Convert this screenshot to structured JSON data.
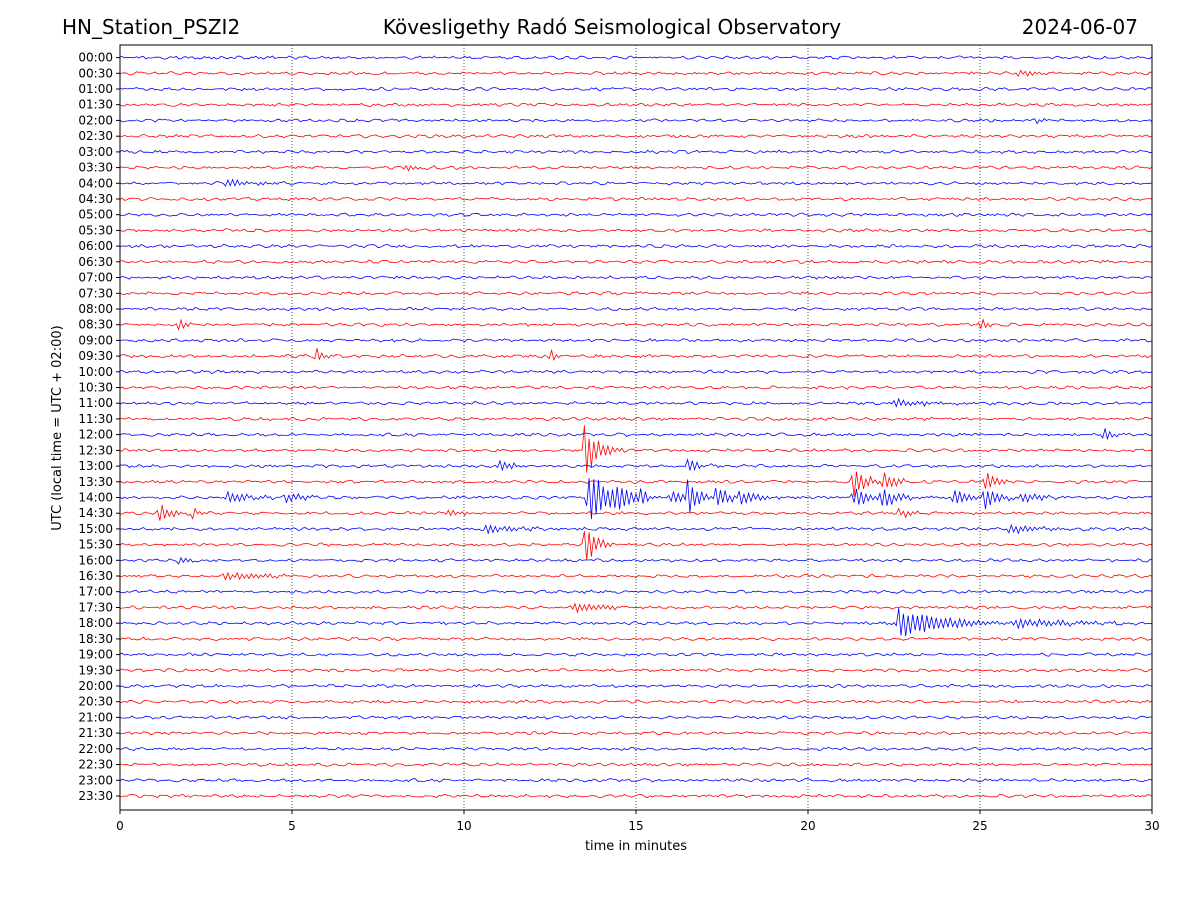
{
  "header": {
    "station": "HN_Station_PSZI2",
    "title": "Kövesligethy Radó Seismological Observatory",
    "date": "2024-06-07"
  },
  "chart_data": {
    "type": "line",
    "title": "Kövesligethy Radó Seismological Observatory",
    "xlabel": "time in minutes",
    "ylabel": "UTC (local time = UTC + 02:00)",
    "xlim": [
      0,
      30
    ],
    "x_ticks": [
      0,
      5,
      10,
      15,
      20,
      25,
      30
    ],
    "x_tick_labels": [
      "0",
      "5",
      "10",
      "15",
      "20",
      "25",
      "30"
    ],
    "grid": "vertical dotted lines at 5, 10, 15, 20, 25 minutes",
    "trace_colors": [
      "#0000ff",
      "#ff0000"
    ],
    "rows": [
      "00:00",
      "00:30",
      "01:00",
      "01:30",
      "02:00",
      "02:30",
      "03:00",
      "03:30",
      "04:00",
      "04:30",
      "05:00",
      "05:30",
      "06:00",
      "06:30",
      "07:00",
      "07:30",
      "08:00",
      "08:30",
      "09:00",
      "09:30",
      "10:00",
      "10:30",
      "11:00",
      "11:30",
      "12:00",
      "12:30",
      "13:00",
      "13:30",
      "14:00",
      "14:30",
      "15:00",
      "15:30",
      "16:00",
      "16:30",
      "17:00",
      "17:30",
      "18:00",
      "18:30",
      "19:00",
      "19:30",
      "20:00",
      "20:30",
      "21:00",
      "21:30",
      "22:00",
      "22:30",
      "23:00",
      "23:30"
    ],
    "events": [
      {
        "row": "00:30",
        "t": 26.1,
        "amp": 0.3,
        "dur": 0.3
      },
      {
        "row": "02:00",
        "t": 26.6,
        "amp": 0.2,
        "dur": 0.2
      },
      {
        "row": "03:30",
        "t": 8.2,
        "amp": 0.2,
        "dur": 0.5
      },
      {
        "row": "04:00",
        "t": 3.1,
        "amp": 0.3,
        "dur": 0.8
      },
      {
        "row": "08:30",
        "t": 1.7,
        "amp": 0.5,
        "dur": 0.2
      },
      {
        "row": "08:30",
        "t": 25.0,
        "amp": 0.5,
        "dur": 0.2
      },
      {
        "row": "09:30",
        "t": 5.7,
        "amp": 0.5,
        "dur": 0.2
      },
      {
        "row": "09:30",
        "t": 12.5,
        "amp": 0.5,
        "dur": 0.2
      },
      {
        "row": "11:00",
        "t": 22.5,
        "amp": 0.25,
        "dur": 1.5
      },
      {
        "row": "12:00",
        "t": 28.6,
        "amp": 0.6,
        "dur": 0.2
      },
      {
        "row": "12:30",
        "t": 13.5,
        "amp": 1.8,
        "dur": 0.4
      },
      {
        "row": "13:00",
        "t": 11.0,
        "amp": 0.4,
        "dur": 0.4
      },
      {
        "row": "13:00",
        "t": 16.5,
        "amp": 0.5,
        "dur": 0.3
      },
      {
        "row": "13:30",
        "t": 21.3,
        "amp": 1.3,
        "dur": 0.3
      },
      {
        "row": "13:30",
        "t": 22.2,
        "amp": 0.8,
        "dur": 0.3
      },
      {
        "row": "13:30",
        "t": 25.1,
        "amp": 0.9,
        "dur": 0.3
      },
      {
        "row": "14:00",
        "t": 3.1,
        "amp": 0.5,
        "dur": 0.5
      },
      {
        "row": "14:00",
        "t": 4.8,
        "amp": 0.4,
        "dur": 0.4
      },
      {
        "row": "14:00",
        "t": 13.6,
        "amp": 2.0,
        "dur": 0.6
      },
      {
        "row": "14:00",
        "t": 14.4,
        "amp": 0.8,
        "dur": 0.3
      },
      {
        "row": "14:00",
        "t": 15.1,
        "amp": 0.5,
        "dur": 0.3
      },
      {
        "row": "14:00",
        "t": 16.0,
        "amp": 0.5,
        "dur": 0.4
      },
      {
        "row": "14:00",
        "t": 16.5,
        "amp": 1.3,
        "dur": 0.3
      },
      {
        "row": "14:00",
        "t": 17.3,
        "amp": 1.0,
        "dur": 0.3
      },
      {
        "row": "14:00",
        "t": 18.0,
        "amp": 0.6,
        "dur": 0.4
      },
      {
        "row": "14:00",
        "t": 21.3,
        "amp": 0.8,
        "dur": 0.4
      },
      {
        "row": "14:00",
        "t": 22.1,
        "amp": 0.7,
        "dur": 0.5
      },
      {
        "row": "14:00",
        "t": 24.2,
        "amp": 0.6,
        "dur": 0.4
      },
      {
        "row": "14:00",
        "t": 25.1,
        "amp": 0.8,
        "dur": 0.4
      },
      {
        "row": "14:00",
        "t": 26.2,
        "amp": 0.4,
        "dur": 0.5
      },
      {
        "row": "14:30",
        "t": 1.1,
        "amp": 0.8,
        "dur": 0.3
      },
      {
        "row": "14:30",
        "t": 2.1,
        "amp": 0.4,
        "dur": 0.2
      },
      {
        "row": "14:30",
        "t": 9.5,
        "amp": 0.3,
        "dur": 0.3
      },
      {
        "row": "14:30",
        "t": 22.6,
        "amp": 0.3,
        "dur": 0.5
      },
      {
        "row": "15:00",
        "t": 10.6,
        "amp": 0.3,
        "dur": 1.0
      },
      {
        "row": "15:00",
        "t": 25.8,
        "amp": 0.3,
        "dur": 1.0
      },
      {
        "row": "15:30",
        "t": 13.5,
        "amp": 1.5,
        "dur": 0.3
      },
      {
        "row": "16:00",
        "t": 1.7,
        "amp": 0.25,
        "dur": 0.3
      },
      {
        "row": "16:30",
        "t": 3.0,
        "amp": 0.25,
        "dur": 1.2
      },
      {
        "row": "17:30",
        "t": 13.1,
        "amp": 0.3,
        "dur": 1.0
      },
      {
        "row": "18:00",
        "t": 22.6,
        "amp": 1.1,
        "dur": 1.2
      },
      {
        "row": "18:00",
        "t": 26.0,
        "amp": 0.3,
        "dur": 2.0
      }
    ]
  }
}
